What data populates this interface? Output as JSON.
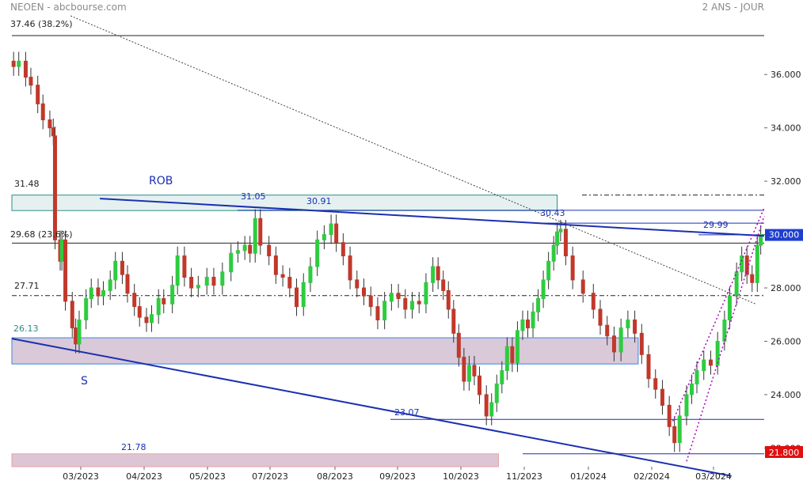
{
  "header": {
    "title": "NEOEN - abcbourse.com",
    "period": "2 ANS - JOUR"
  },
  "labels": {
    "rob": "ROB",
    "s": "S",
    "fib_top": "37.46  (38.2%)",
    "zone_top": "31.48",
    "fib_mid": "29.68  (23.6%)",
    "level_2771": "27.71",
    "zone_support": "26.13",
    "low_zone": "21.78",
    "high_3105": "31.05",
    "high_3091": "30.91",
    "high_3043": "30.43",
    "level_2999": "29.99",
    "low_2307": "23.07"
  },
  "badges": {
    "last_price": "30.000",
    "low_price": "21.800"
  },
  "colors": {
    "up": "#2ecc40",
    "down": "#c0392b",
    "resistance_zone_fill": "#e4f1f0",
    "resistance_zone_stroke": "#2e8b8b",
    "support_zone_fill": "#d9c9d9",
    "support_zone_stroke": "#3a86e0",
    "low_zone_fill": "#dcc6d6",
    "low_zone_stroke": "#e8a0a0",
    "trendline_blue": "#1b2fb0",
    "channel_magenta": "#b000c0",
    "last_badge": "#1f3fd0",
    "low_badge": "#e01010"
  },
  "chart_data": {
    "type": "candlestick",
    "x_axis": {
      "labels": [
        "03/2023",
        "04/2023",
        "05/2023",
        "07/2023",
        "08/2023",
        "09/2023",
        "10/2023",
        "11/2023",
        "01/2024",
        "02/2024",
        "03/2024"
      ],
      "range": [
        "2023-01-30",
        "2024-04-10"
      ]
    },
    "y_axis": {
      "range": [
        21.3,
        38.2
      ],
      "ticks": [
        36,
        34,
        32,
        30,
        28,
        26,
        24,
        22
      ],
      "tick_labels": [
        "36.000",
        "34.000",
        "32.000",
        "30.000",
        "28.000",
        "26.000",
        "24.000",
        "22.000"
      ],
      "side": "right"
    },
    "last_price": 30.0,
    "period_low": 21.8,
    "horizontal_levels": [
      {
        "value": 37.46,
        "label": "37.46  (38.2%)",
        "style": "solid"
      },
      {
        "value": 29.68,
        "label": "29.68  (23.6%)",
        "style": "solid"
      },
      {
        "value": 27.71,
        "label": "27.71",
        "style": "dash-dot"
      },
      {
        "value": 31.48,
        "style": "dash-dot"
      },
      {
        "value": 30.91,
        "style": "solid"
      },
      {
        "value": 30.43,
        "style": "solid"
      },
      {
        "value": 29.99,
        "style": "solid"
      },
      {
        "value": 23.07,
        "style": "solid"
      },
      {
        "value": 21.78,
        "style": "solid"
      }
    ],
    "zones": [
      {
        "name": "resistance",
        "from": 30.9,
        "to": 31.48,
        "start": "2023-01-30",
        "end": "2023-12-12"
      },
      {
        "name": "support",
        "from": 25.15,
        "to": 26.13,
        "start": "2023-01-30",
        "end": "2024-01-28"
      },
      {
        "name": "low",
        "from": 21.3,
        "to": 21.78,
        "start": "2023-01-30",
        "end": "2023-11-08"
      }
    ],
    "trendlines": [
      {
        "name": "ROB",
        "points": [
          [
            "2023-03-22",
            31.35
          ],
          [
            "2024-04-10",
            29.95
          ]
        ]
      },
      {
        "name": "S",
        "points": [
          [
            "2023-01-30",
            26.1
          ],
          [
            "2024-03-22",
            20.95
          ]
        ]
      },
      {
        "name": "long-term",
        "points": [
          [
            "2023-03-05",
            38.2
          ],
          [
            "2024-04-05",
            27.4
          ]
        ]
      },
      {
        "name": "channel-upper",
        "points": [
          [
            "2024-02-17",
            23.0
          ],
          [
            "2024-04-10",
            31.0
          ]
        ]
      },
      {
        "name": "channel-lower",
        "points": [
          [
            "2024-02-25",
            21.5
          ],
          [
            "2024-04-10",
            30.7
          ]
        ]
      }
    ],
    "series_close": [
      [
        "2023-01-31",
        36.3
      ],
      [
        "2023-02-03",
        36.5
      ],
      [
        "2023-02-07",
        35.9
      ],
      [
        "2023-02-10",
        35.6
      ],
      [
        "2023-02-14",
        34.9
      ],
      [
        "2023-02-17",
        34.3
      ],
      [
        "2023-02-21",
        34.0
      ],
      [
        "2023-02-23",
        33.7
      ],
      [
        "2023-02-24",
        29.8
      ],
      [
        "2023-02-27",
        29.0
      ],
      [
        "2023-02-28",
        29.8
      ],
      [
        "2023-03-02",
        27.5
      ],
      [
        "2023-03-06",
        26.5
      ],
      [
        "2023-03-08",
        25.9
      ],
      [
        "2023-03-10",
        26.8
      ],
      [
        "2023-03-14",
        27.6
      ],
      [
        "2023-03-17",
        28.0
      ],
      [
        "2023-03-21",
        27.7
      ],
      [
        "2023-03-24",
        27.9
      ],
      [
        "2023-03-28",
        28.3
      ],
      [
        "2023-03-31",
        29.0
      ],
      [
        "2023-04-04",
        28.5
      ],
      [
        "2023-04-07",
        27.8
      ],
      [
        "2023-04-11",
        27.3
      ],
      [
        "2023-04-14",
        26.9
      ],
      [
        "2023-04-18",
        26.7
      ],
      [
        "2023-04-21",
        27.0
      ],
      [
        "2023-04-25",
        27.6
      ],
      [
        "2023-04-28",
        27.4
      ],
      [
        "2023-05-03",
        28.1
      ],
      [
        "2023-05-06",
        29.2
      ],
      [
        "2023-05-10",
        28.4
      ],
      [
        "2023-05-14",
        28.0
      ],
      [
        "2023-05-18",
        28.1
      ],
      [
        "2023-05-23",
        28.4
      ],
      [
        "2023-05-27",
        28.1
      ],
      [
        "2023-06-01",
        28.6
      ],
      [
        "2023-06-06",
        29.3
      ],
      [
        "2023-06-10",
        29.4
      ],
      [
        "2023-06-14",
        29.6
      ],
      [
        "2023-06-17",
        29.3
      ],
      [
        "2023-06-20",
        30.6
      ],
      [
        "2023-06-23",
        29.6
      ],
      [
        "2023-06-28",
        29.2
      ],
      [
        "2023-07-02",
        28.5
      ],
      [
        "2023-07-06",
        28.4
      ],
      [
        "2023-07-10",
        28.0
      ],
      [
        "2023-07-14",
        27.3
      ],
      [
        "2023-07-18",
        28.2
      ],
      [
        "2023-07-22",
        28.8
      ],
      [
        "2023-07-26",
        29.8
      ],
      [
        "2023-07-30",
        30.0
      ],
      [
        "2023-08-03",
        30.4
      ],
      [
        "2023-08-06",
        29.7
      ],
      [
        "2023-08-10",
        29.2
      ],
      [
        "2023-08-14",
        28.3
      ],
      [
        "2023-08-18",
        28.0
      ],
      [
        "2023-08-22",
        27.7
      ],
      [
        "2023-08-26",
        27.3
      ],
      [
        "2023-08-30",
        26.8
      ],
      [
        "2023-09-03",
        27.5
      ],
      [
        "2023-09-07",
        27.8
      ],
      [
        "2023-09-11",
        27.6
      ],
      [
        "2023-09-15",
        27.2
      ],
      [
        "2023-09-19",
        27.5
      ],
      [
        "2023-09-23",
        27.4
      ],
      [
        "2023-09-27",
        28.2
      ],
      [
        "2023-10-01",
        28.8
      ],
      [
        "2023-10-04",
        28.3
      ],
      [
        "2023-10-07",
        27.9
      ],
      [
        "2023-10-10",
        27.2
      ],
      [
        "2023-10-13",
        26.3
      ],
      [
        "2023-10-16",
        25.4
      ],
      [
        "2023-10-19",
        24.5
      ],
      [
        "2023-10-22",
        25.1
      ],
      [
        "2023-10-25",
        24.7
      ],
      [
        "2023-10-28",
        24.0
      ],
      [
        "2023-11-01",
        23.2
      ],
      [
        "2023-11-04",
        23.7
      ],
      [
        "2023-11-07",
        24.4
      ],
      [
        "2023-11-10",
        24.9
      ],
      [
        "2023-11-13",
        25.8
      ],
      [
        "2023-11-16",
        25.2
      ],
      [
        "2023-11-19",
        26.4
      ],
      [
        "2023-11-22",
        26.8
      ],
      [
        "2023-11-25",
        26.5
      ],
      [
        "2023-11-28",
        27.1
      ],
      [
        "2023-12-01",
        27.6
      ],
      [
        "2023-12-04",
        28.3
      ],
      [
        "2023-12-07",
        29.0
      ],
      [
        "2023-12-10",
        29.6
      ],
      [
        "2023-12-12",
        30.1
      ],
      [
        "2023-12-14",
        30.2
      ],
      [
        "2023-12-17",
        29.2
      ],
      [
        "2023-12-21",
        28.3
      ],
      [
        "2023-12-27",
        27.8
      ],
      [
        "2024-01-02",
        27.2
      ],
      [
        "2024-01-06",
        26.6
      ],
      [
        "2024-01-10",
        26.2
      ],
      [
        "2024-01-14",
        25.6
      ],
      [
        "2024-01-18",
        26.5
      ],
      [
        "2024-01-22",
        26.8
      ],
      [
        "2024-01-26",
        26.3
      ],
      [
        "2024-01-30",
        25.5
      ],
      [
        "2024-02-03",
        24.6
      ],
      [
        "2024-02-07",
        24.2
      ],
      [
        "2024-02-11",
        23.6
      ],
      [
        "2024-02-15",
        22.8
      ],
      [
        "2024-02-18",
        22.2
      ],
      [
        "2024-02-21",
        23.2
      ],
      [
        "2024-02-25",
        24.0
      ],
      [
        "2024-02-28",
        24.4
      ],
      [
        "2024-03-02",
        24.9
      ],
      [
        "2024-03-06",
        25.3
      ],
      [
        "2024-03-10",
        25.1
      ],
      [
        "2024-03-14",
        26.0
      ],
      [
        "2024-03-18",
        26.8
      ],
      [
        "2024-03-21",
        27.7
      ],
      [
        "2024-03-25",
        28.6
      ],
      [
        "2024-03-28",
        29.2
      ],
      [
        "2024-03-31",
        28.5
      ],
      [
        "2024-04-03",
        28.2
      ],
      [
        "2024-04-06",
        29.6
      ],
      [
        "2024-04-08",
        30.0
      ]
    ]
  }
}
